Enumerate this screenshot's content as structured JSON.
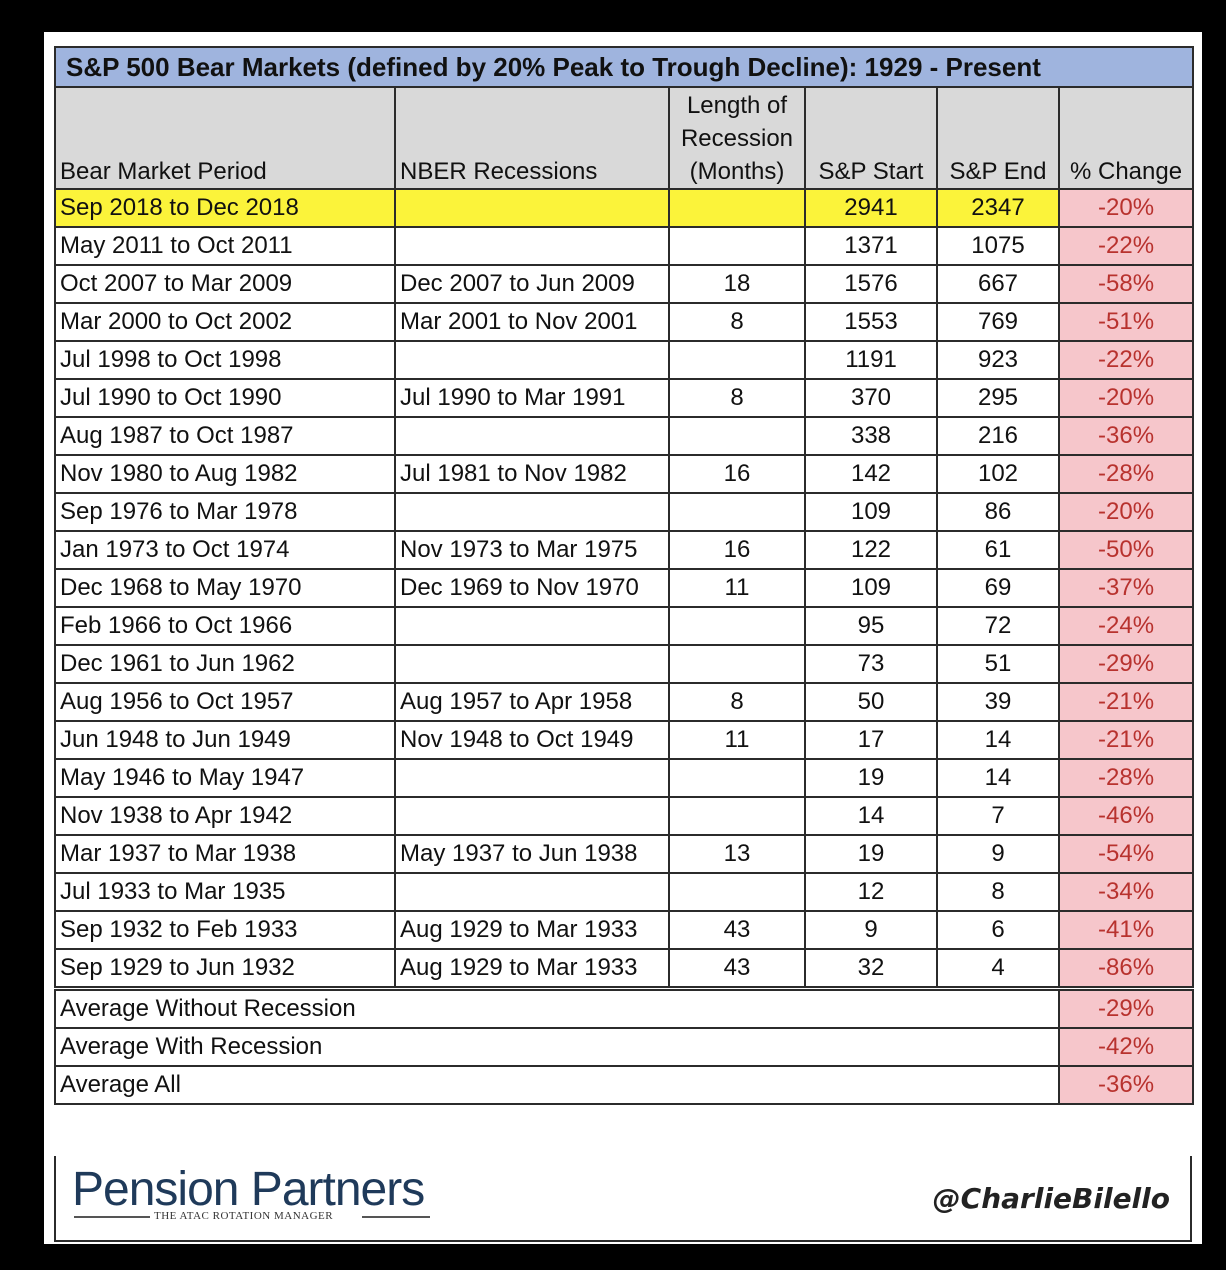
{
  "title": "S&P 500 Bear Markets (defined by 20% Peak to Trough Decline): 1929 - Present",
  "columns": [
    "Bear Market Period",
    "NBER Recessions",
    "Length of Recession (Months)",
    "S&P Start",
    "S&P End",
    "% Change"
  ],
  "rows": [
    {
      "period": "Sep 2018 to Dec 2018",
      "nber": "",
      "months": "",
      "start": "2941",
      "end": "2347",
      "change": "-20%"
    },
    {
      "period": "May 2011 to Oct 2011",
      "nber": "",
      "months": "",
      "start": "1371",
      "end": "1075",
      "change": "-22%"
    },
    {
      "period": "Oct 2007 to Mar 2009",
      "nber": "Dec 2007 to Jun 2009",
      "months": "18",
      "start": "1576",
      "end": "667",
      "change": "-58%"
    },
    {
      "period": "Mar 2000 to Oct 2002",
      "nber": "Mar 2001 to Nov 2001",
      "months": "8",
      "start": "1553",
      "end": "769",
      "change": "-51%"
    },
    {
      "period": "Jul 1998 to Oct 1998",
      "nber": "",
      "months": "",
      "start": "1191",
      "end": "923",
      "change": "-22%"
    },
    {
      "period": "Jul 1990 to Oct 1990",
      "nber": "Jul 1990 to Mar 1991",
      "months": "8",
      "start": "370",
      "end": "295",
      "change": "-20%"
    },
    {
      "period": "Aug 1987 to Oct 1987",
      "nber": "",
      "months": "",
      "start": "338",
      "end": "216",
      "change": "-36%"
    },
    {
      "period": "Nov 1980 to Aug 1982",
      "nber": "Jul 1981 to Nov 1982",
      "months": "16",
      "start": "142",
      "end": "102",
      "change": "-28%"
    },
    {
      "period": "Sep 1976 to Mar 1978",
      "nber": "",
      "months": "",
      "start": "109",
      "end": "86",
      "change": "-20%"
    },
    {
      "period": "Jan 1973 to Oct 1974",
      "nber": "Nov 1973 to Mar 1975",
      "months": "16",
      "start": "122",
      "end": "61",
      "change": "-50%"
    },
    {
      "period": "Dec 1968 to May 1970",
      "nber": "Dec 1969 to Nov 1970",
      "months": "11",
      "start": "109",
      "end": "69",
      "change": "-37%"
    },
    {
      "period": "Feb 1966 to Oct 1966",
      "nber": "",
      "months": "",
      "start": "95",
      "end": "72",
      "change": "-24%"
    },
    {
      "period": "Dec 1961 to Jun 1962",
      "nber": "",
      "months": "",
      "start": "73",
      "end": "51",
      "change": "-29%"
    },
    {
      "period": "Aug 1956 to Oct 1957",
      "nber": "Aug 1957 to Apr 1958",
      "months": "8",
      "start": "50",
      "end": "39",
      "change": "-21%"
    },
    {
      "period": "Jun 1948 to Jun 1949",
      "nber": "Nov 1948 to Oct 1949",
      "months": "11",
      "start": "17",
      "end": "14",
      "change": "-21%"
    },
    {
      "period": "May 1946 to May 1947",
      "nber": "",
      "months": "",
      "start": "19",
      "end": "14",
      "change": "-28%"
    },
    {
      "period": "Nov 1938 to Apr 1942",
      "nber": "",
      "months": "",
      "start": "14",
      "end": "7",
      "change": "-46%"
    },
    {
      "period": "Mar 1937 to Mar 1938",
      "nber": "May 1937 to Jun 1938",
      "months": "13",
      "start": "19",
      "end": "9",
      "change": "-54%"
    },
    {
      "period": "Jul 1933 to Mar 1935",
      "nber": "",
      "months": "",
      "start": "12",
      "end": "8",
      "change": "-34%"
    },
    {
      "period": "Sep 1932 to Feb 1933",
      "nber": "Aug 1929 to Mar 1933",
      "months": "43",
      "start": "9",
      "end": "6",
      "change": "-41%"
    },
    {
      "period": "Sep 1929 to Jun 1932",
      "nber": "Aug 1929 to Mar 1933",
      "months": "43",
      "start": "32",
      "end": "4",
      "change": "-86%"
    }
  ],
  "averages": [
    {
      "label": "Average Without Recession",
      "change": "-29%"
    },
    {
      "label": "Average With Recession",
      "change": "-42%"
    },
    {
      "label": "Average All",
      "change": "-36%"
    }
  ],
  "footer": {
    "logo": "Pension Partners",
    "logo_tagline": "THE ATAC ROTATION MANAGER",
    "handle": "@CharlieBilello"
  },
  "colors": {
    "title_bg": "#9fb4de",
    "header_bg": "#d9d9d9",
    "highlight": "#fbf33a",
    "change_bg": "#f6c6cb",
    "change_text": "#b8322e"
  }
}
